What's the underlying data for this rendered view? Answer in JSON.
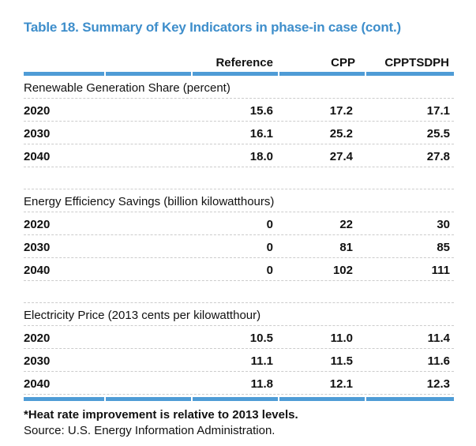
{
  "title": "Table 18. Summary of Key Indicators in phase-in case (cont.)",
  "columns": [
    "Reference",
    "CPP",
    "CPPTSDPH"
  ],
  "sections": [
    {
      "label": "Renewable Generation Share (percent)",
      "rows": [
        {
          "year": "2020",
          "values": [
            "15.6",
            "17.2",
            "17.1"
          ]
        },
        {
          "year": "2030",
          "values": [
            "16.1",
            "25.2",
            "25.5"
          ]
        },
        {
          "year": "2040",
          "values": [
            "18.0",
            "27.4",
            "27.8"
          ]
        }
      ]
    },
    {
      "label": "Energy Efficiency Savings (billion kilowatthours)",
      "rows": [
        {
          "year": "2020",
          "values": [
            "0",
            "22",
            "30"
          ]
        },
        {
          "year": "2030",
          "values": [
            "0",
            "81",
            "85"
          ]
        },
        {
          "year": "2040",
          "values": [
            "0",
            "102",
            "111"
          ]
        }
      ]
    },
    {
      "label": "Electricity Price (2013 cents per kilowatthour)",
      "rows": [
        {
          "year": "2020",
          "values": [
            "10.5",
            "11.0",
            "11.4"
          ]
        },
        {
          "year": "2030",
          "values": [
            "11.1",
            "11.5",
            "11.6"
          ]
        },
        {
          "year": "2040",
          "values": [
            "11.8",
            "12.1",
            "12.3"
          ]
        }
      ]
    }
  ],
  "footnotes": [
    "*Heat rate improvement is relative to 2013 levels.",
    "Source: U.S. Energy Information Administration."
  ],
  "colors": {
    "title_blue": "#3e8ecb",
    "bar_blue": "#4f9cd6",
    "row_line": "#cccccc",
    "text": "#111111"
  }
}
